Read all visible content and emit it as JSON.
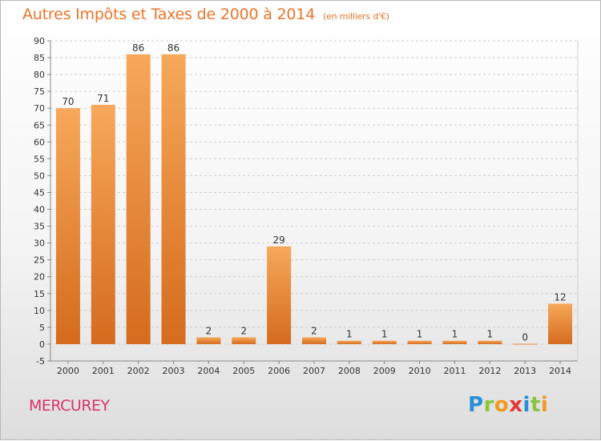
{
  "header": {
    "title": "Autres Impôts et Taxes de 2000 à 2014",
    "subtitle": "(en milliers d'€)"
  },
  "footer": {
    "commune": "MERCUREY",
    "logo_text": [
      "P",
      "r",
      "o",
      "x",
      "i",
      "t",
      "i"
    ],
    "logo_colors": [
      "#2a8fd8",
      "#8bc43f",
      "#f29a1f",
      "#e03a3a",
      "#2a8fd8",
      "#8bc43f",
      "#f29a1f"
    ]
  },
  "colors": {
    "bar_light": "#f7a85a",
    "bar_dark": "#d56b1d",
    "title": "#e8762a",
    "commune": "#d9336a"
  },
  "chart_data": {
    "type": "bar",
    "title": "Autres Impôts et Taxes de 2000 à 2014",
    "subtitle": "(en milliers d'€)",
    "categories": [
      "2000",
      "2001",
      "2002",
      "2003",
      "2004",
      "2005",
      "2006",
      "2007",
      "2008",
      "2009",
      "2010",
      "2011",
      "2012",
      "2013",
      "2014"
    ],
    "values": [
      70,
      71,
      86,
      86,
      2,
      2,
      29,
      2,
      1,
      1,
      1,
      1,
      1,
      0,
      12
    ],
    "ylim": [
      -5,
      90
    ],
    "yticks": [
      -5,
      0,
      5,
      10,
      15,
      20,
      25,
      30,
      35,
      40,
      45,
      50,
      55,
      60,
      65,
      70,
      75,
      80,
      85,
      90
    ],
    "grid": true
  }
}
